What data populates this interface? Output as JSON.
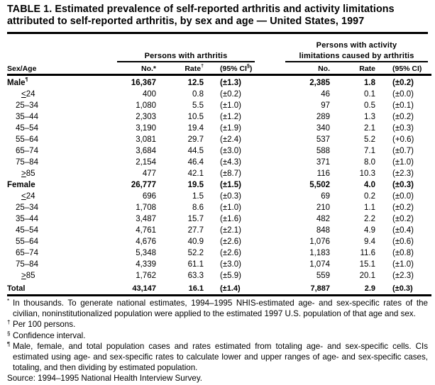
{
  "title": "TABLE 1. Estimated prevalence of self-reported arthritis and activity limitations attributed to self-reported arthritis, by sex and age — United States, 1997",
  "group_headers": {
    "arthritis": "Persons with arthritis",
    "limitations_line1": "Persons with activity",
    "limitations_line2": "limitations caused by arthritis"
  },
  "column_headers": {
    "sex_age": "Sex/Age",
    "no": "No.",
    "no_mark": "*",
    "rate": "Rate",
    "rate_mark": "†",
    "ci": "(95% CI",
    "ci_mark": "§",
    "ci_close": ")",
    "no2": "No.",
    "rate2": "Rate",
    "ci2": "(95% CI)"
  },
  "rows": [
    {
      "label": "Male",
      "mark": "¶",
      "type": "sex",
      "no": "16,367",
      "rate": "12.5",
      "ci": "(±1.3)",
      "no2": "2,385",
      "rate2": "1.8",
      "ci2": "(±0.2)"
    },
    {
      "label": "<24",
      "type": "age",
      "sym": true,
      "no": "400",
      "rate": "0.8",
      "ci": "(±0.2)",
      "no2": "46",
      "rate2": "0.1",
      "ci2": "(±0.0)"
    },
    {
      "label": "25–34",
      "type": "age",
      "no": "1,080",
      "rate": "5.5",
      "ci": "(±1.0)",
      "no2": "97",
      "rate2": "0.5",
      "ci2": "(±0.1)"
    },
    {
      "label": "35–44",
      "type": "age",
      "no": "2,303",
      "rate": "10.5",
      "ci": "(±1.2)",
      "no2": "289",
      "rate2": "1.3",
      "ci2": "(±0.2)"
    },
    {
      "label": "45–54",
      "type": "age",
      "no": "3,190",
      "rate": "19.4",
      "ci": "(±1.9)",
      "no2": "340",
      "rate2": "2.1",
      "ci2": "(±0.3)"
    },
    {
      "label": "55–64",
      "type": "age",
      "no": "3,081",
      "rate": "29.7",
      "ci": "(±2.4)",
      "no2": "537",
      "rate2": "5.2",
      "ci2": "(+0.6)"
    },
    {
      "label": "65–74",
      "type": "age",
      "no": "3,684",
      "rate": "44.5",
      "ci": "(±3.0)",
      "no2": "588",
      "rate2": "7.1",
      "ci2": "(±0.7)"
    },
    {
      "label": "75–84",
      "type": "age",
      "no": "2,154",
      "rate": "46.4",
      "ci": "(±4.3)",
      "no2": "371",
      "rate2": "8.0",
      "ci2": "(±1.0)"
    },
    {
      "label": ">85",
      "type": "age",
      "sym": true,
      "no": "477",
      "rate": "42.1",
      "ci": "(±8.7)",
      "no2": "116",
      "rate2": "10.3",
      "ci2": "(±2.3)"
    },
    {
      "label": "Female",
      "type": "sex",
      "no": "26,777",
      "rate": "19.5",
      "ci": "(±1.5)",
      "no2": "5,502",
      "rate2": "4.0",
      "ci2": "(±0.3)"
    },
    {
      "label": "<24",
      "type": "age",
      "sym": true,
      "no": "696",
      "rate": "1.5",
      "ci": "(±0.3)",
      "no2": "69",
      "rate2": "0.2",
      "ci2": "(±0.0)"
    },
    {
      "label": "25–34",
      "type": "age",
      "no": "1,708",
      "rate": "8.6",
      "ci": "(±1.0)",
      "no2": "210",
      "rate2": "1.1",
      "ci2": "(±0.2)"
    },
    {
      "label": "35–44",
      "type": "age",
      "no": "3,487",
      "rate": "15.7",
      "ci": "(±1.6)",
      "no2": "482",
      "rate2": "2.2",
      "ci2": "(±0.2)"
    },
    {
      "label": "45–54",
      "type": "age",
      "no": "4,761",
      "rate": "27.7",
      "ci": "(±2.1)",
      "no2": "848",
      "rate2": "4.9",
      "ci2": "(±0.4)"
    },
    {
      "label": "55–64",
      "type": "age",
      "no": "4,676",
      "rate": "40.9",
      "ci": "(±2.6)",
      "no2": "1,076",
      "rate2": "9.4",
      "ci2": "(±0.6)"
    },
    {
      "label": "65–74",
      "type": "age",
      "no": "5,348",
      "rate": "52.2",
      "ci": "(±2.6)",
      "no2": "1,183",
      "rate2": "11.6",
      "ci2": "(±0.8)"
    },
    {
      "label": "75–84",
      "type": "age",
      "no": "4,339",
      "rate": "61.1",
      "ci": "(±3.0)",
      "no2": "1,074",
      "rate2": "15.1",
      "ci2": "(±1.0)"
    },
    {
      "label": ">85",
      "type": "age",
      "sym": true,
      "no": "1,762",
      "rate": "63.3",
      "ci": "(±5.9)",
      "no2": "559",
      "rate2": "20.1",
      "ci2": "(±2.3)"
    }
  ],
  "total": {
    "label": "Total",
    "no": "43,147",
    "rate": "16.1",
    "ci": "(±1.4)",
    "no2": "7,887",
    "rate2": "2.9",
    "ci2": "(±0.3)"
  },
  "footnotes": [
    {
      "mark": "*",
      "text": "In thousands. To generate national estimates, 1994–1995 NHIS-estimated age- and sex-specific rates of the civilian, noninstitutionalized population were applied to the estimated 1997 U.S. population of that age and sex."
    },
    {
      "mark": "†",
      "text": "Per 100 persons."
    },
    {
      "mark": "§",
      "text": "Confidence interval."
    },
    {
      "mark": "¶",
      "text": "Male, female, and total population cases and rates estimated from totaling age- and sex-specific cells. CIs estimated using age- and sex-specific rates to calculate lower and upper ranges of age- and sex-specific cases, totaling, and then dividing by estimated population."
    }
  ],
  "source": "Source: 1994–1995 National Health Interview Survey."
}
